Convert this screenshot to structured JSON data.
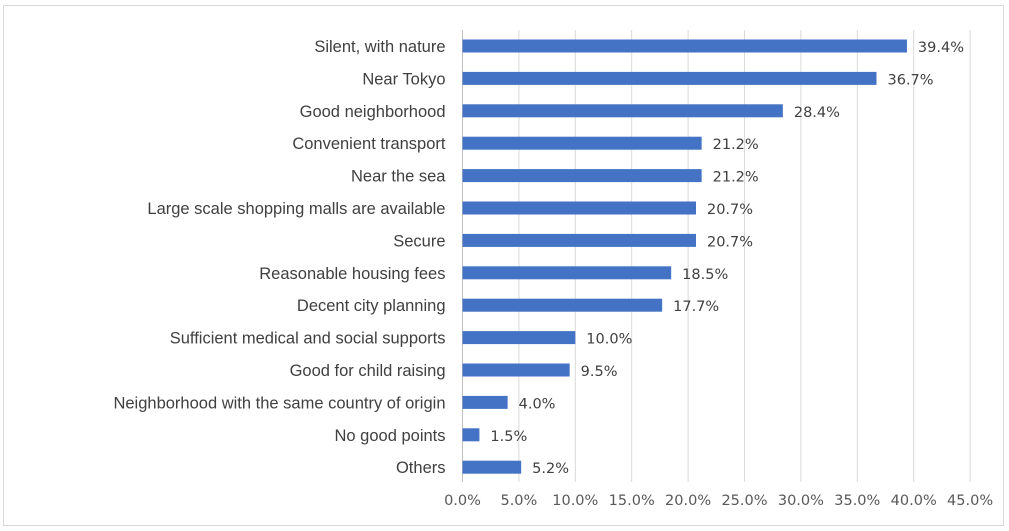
{
  "chart_data": {
    "type": "bar",
    "orientation": "horizontal",
    "categories": [
      "Silent, with nature",
      "Near Tokyo",
      "Good neighborhood",
      "Convenient transport",
      "Near the sea",
      "Large scale shopping malls are available",
      "Secure",
      "Reasonable housing fees",
      "Decent city planning",
      "Sufficient medical and social supports",
      "Good for child raising",
      "Neighborhood with the same country of origin",
      "No good points",
      "Others"
    ],
    "values": [
      39.4,
      36.7,
      28.4,
      21.2,
      21.2,
      20.7,
      20.7,
      18.5,
      17.7,
      10.0,
      9.5,
      4.0,
      1.5,
      5.2
    ],
    "value_labels": [
      "39.4%",
      "36.7%",
      "28.4%",
      "21.2%",
      "21.2%",
      "20.7%",
      "20.7%",
      "18.5%",
      "17.7%",
      "10.0%",
      "9.5%",
      "4.0%",
      "1.5%",
      "5.2%"
    ],
    "x_ticks": [
      "0.0%",
      "5.0%",
      "10.0%",
      "15.0%",
      "20.0%",
      "25.0%",
      "30.0%",
      "35.0%",
      "40.0%",
      "45.0%"
    ],
    "xlim": [
      0,
      45
    ],
    "title": "",
    "xlabel": "",
    "ylabel": "",
    "grid": "vertical",
    "legend": "none",
    "bar_color": "#4472c4"
  }
}
